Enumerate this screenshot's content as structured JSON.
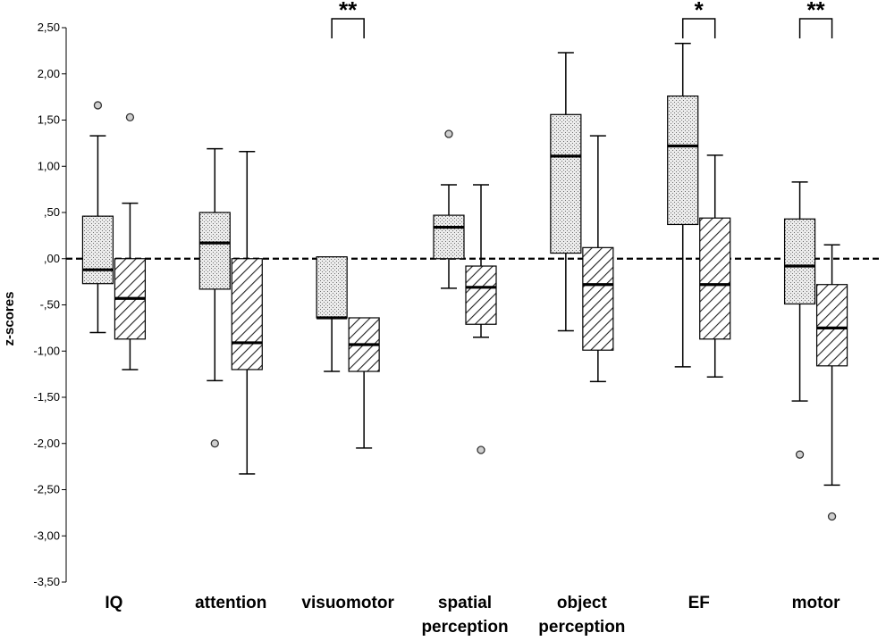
{
  "chart_data": {
    "type": "boxplot",
    "ylabel": "z-scores",
    "ylim": [
      -3.5,
      2.5
    ],
    "y_ticks": [
      "2,50",
      "2,00",
      "1,50",
      "1,00",
      ",50",
      ",00",
      "-,50",
      "-1,00",
      "-1,50",
      "-2,00",
      "-2,50",
      "-3,00",
      "-3,50"
    ],
    "y_tick_values": [
      2.5,
      2.0,
      1.5,
      1.0,
      0.5,
      0.0,
      -0.5,
      -1.0,
      -1.5,
      -2.0,
      -2.5,
      -3.0,
      -3.5
    ],
    "reference_line": 0,
    "categories": [
      {
        "label_lines": [
          "IQ"
        ],
        "boxes": [
          {
            "pattern": "dotted",
            "min": -0.8,
            "q1": -0.27,
            "median": -0.12,
            "q3": 0.46,
            "max": 1.33,
            "outliers": [
              1.66
            ]
          },
          {
            "pattern": "hatched",
            "min": -1.2,
            "q1": -0.87,
            "median": -0.43,
            "q3": 0.0,
            "max": 0.6,
            "outliers": [
              1.53
            ]
          }
        ]
      },
      {
        "label_lines": [
          "attention"
        ],
        "boxes": [
          {
            "pattern": "dotted",
            "min": -1.32,
            "q1": -0.33,
            "median": 0.17,
            "q3": 0.5,
            "max": 1.19,
            "outliers": [
              -2.0
            ]
          },
          {
            "pattern": "hatched",
            "min": -2.33,
            "q1": -1.2,
            "median": -0.91,
            "q3": 0.0,
            "max": 1.16,
            "outliers": []
          }
        ]
      },
      {
        "label_lines": [
          "visuomotor"
        ],
        "boxes": [
          {
            "pattern": "dotted",
            "min": -1.22,
            "q1": -0.64,
            "median": -0.64,
            "q3": 0.02,
            "max": 0.02,
            "outliers": []
          },
          {
            "pattern": "hatched",
            "min": -2.05,
            "q1": -1.22,
            "median": -0.93,
            "q3": -0.64,
            "max": -0.64,
            "outliers": []
          }
        ],
        "significance": "**"
      },
      {
        "label_lines": [
          "spatial",
          "perception"
        ],
        "boxes": [
          {
            "pattern": "dotted",
            "min": -0.32,
            "q1": 0.0,
            "median": 0.34,
            "q3": 0.47,
            "max": 0.8,
            "outliers": [
              1.35
            ]
          },
          {
            "pattern": "hatched",
            "min": -0.85,
            "q1": -0.71,
            "median": -0.31,
            "q3": -0.08,
            "max": 0.8,
            "outliers": [
              -2.07
            ]
          }
        ]
      },
      {
        "label_lines": [
          "object",
          "perception"
        ],
        "boxes": [
          {
            "pattern": "dotted",
            "min": -0.78,
            "q1": 0.06,
            "median": 1.11,
            "q3": 1.56,
            "max": 2.23,
            "outliers": []
          },
          {
            "pattern": "hatched",
            "min": -1.33,
            "q1": -0.99,
            "median": -0.28,
            "q3": 0.12,
            "max": 1.33,
            "outliers": []
          }
        ]
      },
      {
        "label_lines": [
          "EF"
        ],
        "boxes": [
          {
            "pattern": "dotted",
            "min": -1.17,
            "q1": 0.37,
            "median": 1.22,
            "q3": 1.76,
            "max": 2.33,
            "outliers": []
          },
          {
            "pattern": "hatched",
            "min": -1.28,
            "q1": -0.87,
            "median": -0.28,
            "q3": 0.44,
            "max": 1.12,
            "outliers": []
          }
        ],
        "significance": "*"
      },
      {
        "label_lines": [
          "motor"
        ],
        "boxes": [
          {
            "pattern": "dotted",
            "min": -1.54,
            "q1": -0.49,
            "median": -0.08,
            "q3": 0.43,
            "max": 0.83,
            "outliers": [
              -2.12
            ]
          },
          {
            "pattern": "hatched",
            "min": -2.45,
            "q1": -1.16,
            "median": -0.75,
            "q3": -0.28,
            "max": 0.15,
            "outliers": [
              -2.79
            ]
          }
        ],
        "significance": "**"
      }
    ]
  }
}
